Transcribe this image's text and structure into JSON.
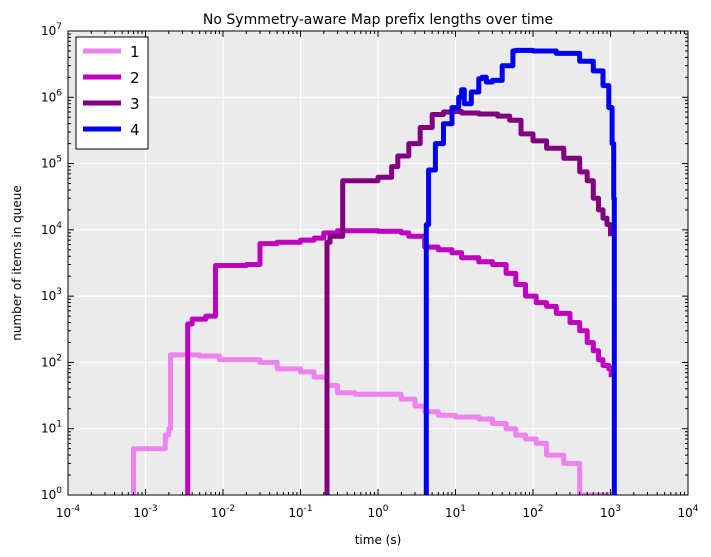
{
  "chart_data": {
    "type": "line",
    "title": "No Symmetry-aware Map prefix lengths over time",
    "xlabel": "time (s)",
    "ylabel": "number of items in queue",
    "xscale": "log",
    "yscale": "log",
    "xlim": [
      0.0001,
      10000
    ],
    "ylim": [
      1,
      10000000
    ],
    "xticks": [
      {
        "value": 0.0001,
        "base": "10",
        "exp": "-4"
      },
      {
        "value": 0.001,
        "base": "10",
        "exp": "-3"
      },
      {
        "value": 0.01,
        "base": "10",
        "exp": "-2"
      },
      {
        "value": 0.1,
        "base": "10",
        "exp": "-1"
      },
      {
        "value": 1,
        "base": "10",
        "exp": "0"
      },
      {
        "value": 10,
        "base": "10",
        "exp": "1"
      },
      {
        "value": 100,
        "base": "10",
        "exp": "2"
      },
      {
        "value": 1000,
        "base": "10",
        "exp": "3"
      },
      {
        "value": 10000,
        "base": "10",
        "exp": "4"
      }
    ],
    "yticks": [
      {
        "value": 1,
        "base": "10",
        "exp": "0"
      },
      {
        "value": 10,
        "base": "10",
        "exp": "1"
      },
      {
        "value": 100,
        "base": "10",
        "exp": "2"
      },
      {
        "value": 1000,
        "base": "10",
        "exp": "3"
      },
      {
        "value": 10000,
        "base": "10",
        "exp": "4"
      },
      {
        "value": 100000,
        "base": "10",
        "exp": "5"
      },
      {
        "value": 1000000,
        "base": "10",
        "exp": "6"
      },
      {
        "value": 10000000,
        "base": "10",
        "exp": "7"
      }
    ],
    "grid": true,
    "legend_position": "top-left",
    "background": "#ebebeb",
    "series": [
      {
        "name": "1",
        "color": "#ee82ee",
        "points": [
          [
            0.0007,
            1
          ],
          [
            0.0007,
            5
          ],
          [
            0.0018,
            8
          ],
          [
            0.002,
            10
          ],
          [
            0.0021,
            130
          ],
          [
            0.005,
            125
          ],
          [
            0.009,
            110
          ],
          [
            0.03,
            100
          ],
          [
            0.05,
            80
          ],
          [
            0.1,
            72
          ],
          [
            0.15,
            60
          ],
          [
            0.22,
            45
          ],
          [
            0.3,
            35
          ],
          [
            0.5,
            33
          ],
          [
            1.0,
            33
          ],
          [
            2.0,
            28
          ],
          [
            3.0,
            22
          ],
          [
            4.0,
            18
          ],
          [
            6.0,
            16
          ],
          [
            10,
            15
          ],
          [
            20,
            14
          ],
          [
            30,
            12
          ],
          [
            45,
            10
          ],
          [
            60,
            8
          ],
          [
            80,
            7
          ],
          [
            110,
            6
          ],
          [
            150,
            4
          ],
          [
            250,
            3
          ],
          [
            380,
            3
          ],
          [
            400,
            1
          ],
          [
            1200,
            1
          ]
        ]
      },
      {
        "name": "2",
        "color": "#c000c0",
        "points": [
          [
            0.0035,
            1
          ],
          [
            0.0035,
            380
          ],
          [
            0.004,
            450
          ],
          [
            0.006,
            500
          ],
          [
            0.008,
            2900
          ],
          [
            0.02,
            3000
          ],
          [
            0.03,
            6200
          ],
          [
            0.05,
            6500
          ],
          [
            0.1,
            7000
          ],
          [
            0.15,
            7500
          ],
          [
            0.2,
            9000
          ],
          [
            0.3,
            9700
          ],
          [
            0.5,
            9700
          ],
          [
            1.0,
            9500
          ],
          [
            2.0,
            9000
          ],
          [
            2.5,
            8000
          ],
          [
            4.0,
            5500
          ],
          [
            6.0,
            5000
          ],
          [
            9.0,
            4500
          ],
          [
            12,
            3800
          ],
          [
            20,
            3300
          ],
          [
            30,
            3000
          ],
          [
            45,
            2200
          ],
          [
            60,
            1500
          ],
          [
            80,
            1000
          ],
          [
            110,
            800
          ],
          [
            150,
            700
          ],
          [
            200,
            550
          ],
          [
            300,
            400
          ],
          [
            400,
            300
          ],
          [
            500,
            200
          ],
          [
            600,
            150
          ],
          [
            700,
            110
          ],
          [
            800,
            90
          ],
          [
            950,
            80
          ],
          [
            1020,
            60
          ]
        ]
      },
      {
        "name": "3",
        "color": "#800080",
        "points": [
          [
            0.22,
            1
          ],
          [
            0.22,
            6500
          ],
          [
            0.24,
            8000
          ],
          [
            0.35,
            55000
          ],
          [
            0.6,
            55000
          ],
          [
            1.0,
            62000
          ],
          [
            1.5,
            90000
          ],
          [
            1.8,
            130000
          ],
          [
            2.5,
            200000
          ],
          [
            3.5,
            350000
          ],
          [
            5.0,
            550000
          ],
          [
            7.0,
            600000
          ],
          [
            9.0,
            610000
          ],
          [
            12,
            580000
          ],
          [
            20,
            560000
          ],
          [
            35,
            520000
          ],
          [
            50,
            450000
          ],
          [
            70,
            280000
          ],
          [
            100,
            220000
          ],
          [
            150,
            170000
          ],
          [
            250,
            120000
          ],
          [
            400,
            75000
          ],
          [
            500,
            55000
          ],
          [
            600,
            30000
          ],
          [
            700,
            20000
          ],
          [
            800,
            15000
          ],
          [
            900,
            12000
          ],
          [
            1000,
            8000
          ]
        ]
      },
      {
        "name": "4",
        "color": "#0000ee",
        "points": [
          [
            4.2,
            1
          ],
          [
            4.2,
            12000
          ],
          [
            4.5,
            80000
          ],
          [
            5.5,
            200000
          ],
          [
            7.0,
            400000
          ],
          [
            9.0,
            700000
          ],
          [
            11,
            1000000
          ],
          [
            12,
            1300000
          ],
          [
            13,
            800000
          ],
          [
            16,
            1200000
          ],
          [
            20,
            1900000
          ],
          [
            22,
            2000000
          ],
          [
            25,
            1700000
          ],
          [
            30,
            1800000
          ],
          [
            40,
            3000000
          ],
          [
            55,
            5000000
          ],
          [
            60,
            5100000
          ],
          [
            100,
            5000000
          ],
          [
            200,
            4600000
          ],
          [
            400,
            3500000
          ],
          [
            600,
            2500000
          ],
          [
            800,
            1500000
          ],
          [
            950,
            700000
          ],
          [
            1050,
            200000
          ],
          [
            1100,
            30000
          ],
          [
            1120,
            1
          ]
        ]
      }
    ]
  }
}
